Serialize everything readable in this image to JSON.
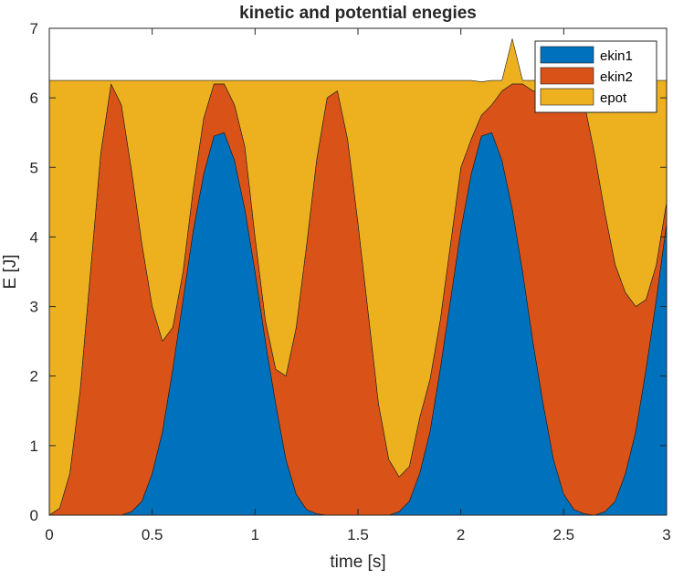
{
  "chart_data": {
    "type": "area",
    "stacked": true,
    "title": "kinetic and potential enegies",
    "xlabel": "time [s]",
    "ylabel": "E [J]",
    "xlim": [
      0,
      3
    ],
    "ylim": [
      0,
      7
    ],
    "xticks": [
      0,
      0.5,
      1,
      1.5,
      2,
      2.5,
      3
    ],
    "yticks": [
      0,
      1,
      2,
      3,
      4,
      5,
      6,
      7
    ],
    "xtick_labels": [
      "0",
      "0.5",
      "1",
      "1.5",
      "2",
      "2.5",
      "3"
    ],
    "ytick_labels": [
      "0",
      "1",
      "2",
      "3",
      "4",
      "5",
      "6",
      "7"
    ],
    "grid": false,
    "legend_position": "top-right",
    "total_energy": 6.25,
    "x": [
      0,
      0.05,
      0.1,
      0.15,
      0.2,
      0.25,
      0.3,
      0.35,
      0.4,
      0.45,
      0.5,
      0.55,
      0.6,
      0.65,
      0.7,
      0.75,
      0.8,
      0.85,
      0.9,
      0.95,
      1.0,
      1.05,
      1.1,
      1.15,
      1.2,
      1.25,
      1.3,
      1.35,
      1.4,
      1.45,
      1.5,
      1.55,
      1.6,
      1.65,
      1.7,
      1.75,
      1.8,
      1.85,
      1.9,
      1.95,
      2.0,
      2.05,
      2.1,
      2.15,
      2.2,
      2.25,
      2.3,
      2.35,
      2.4,
      2.45,
      2.5,
      2.55,
      2.6,
      2.65,
      2.7,
      2.75,
      2.8,
      2.85,
      2.9,
      2.95,
      3.0
    ],
    "series": [
      {
        "name": "ekin1",
        "color": "#0072BD",
        "values": [
          0,
          0,
          0,
          0,
          0,
          0,
          0,
          0,
          0.05,
          0.2,
          0.6,
          1.2,
          2.1,
          3.1,
          4.1,
          4.9,
          5.45,
          5.5,
          5.1,
          4.4,
          3.5,
          2.5,
          1.6,
          0.8,
          0.3,
          0.08,
          0.02,
          0,
          0,
          0,
          0,
          0,
          0,
          0,
          0.05,
          0.2,
          0.6,
          1.2,
          2.1,
          3.1,
          4.1,
          4.9,
          5.45,
          5.5,
          5.1,
          4.4,
          3.5,
          2.5,
          1.6,
          0.8,
          0.3,
          0.08,
          0.02,
          0,
          0.05,
          0.2,
          0.6,
          1.2,
          2.1,
          3.1,
          4.2
        ]
      },
      {
        "name": "ekin2",
        "color": "#D95319",
        "values": [
          0,
          0.1,
          0.6,
          1.8,
          3.5,
          5.2,
          6.2,
          5.9,
          4.9,
          3.7,
          2.4,
          1.3,
          0.6,
          0.4,
          0.6,
          0.8,
          0.75,
          0.7,
          0.8,
          0.9,
          0.5,
          0.3,
          0.5,
          1.2,
          2.4,
          3.8,
          5.1,
          6.0,
          6.1,
          5.4,
          4.2,
          2.9,
          1.6,
          0.8,
          0.5,
          0.5,
          0.8,
          0.75,
          0.7,
          0.8,
          0.9,
          0.5,
          0.3,
          0.4,
          1.0,
          1.8,
          2.7,
          3.6,
          4.5,
          5.3,
          5.9,
          6.1,
          5.9,
          5.2,
          4.3,
          3.4,
          2.6,
          1.8,
          1.0,
          0.5,
          0.3
        ]
      },
      {
        "name": "epot",
        "color": "#EDB120",
        "values": [
          6.25,
          6.15,
          5.65,
          4.45,
          2.75,
          1.05,
          0.05,
          0.35,
          1.3,
          2.35,
          3.25,
          3.75,
          3.55,
          2.75,
          1.55,
          0.55,
          0.05,
          0.05,
          0.35,
          0.95,
          2.25,
          3.45,
          4.15,
          4.25,
          3.55,
          2.37,
          1.13,
          0.25,
          0.15,
          0.85,
          2.05,
          3.35,
          4.65,
          5.45,
          5.7,
          5.55,
          4.85,
          4.3,
          3.45,
          2.35,
          1.25,
          0.85,
          0.48,
          0.35,
          0.15,
          0.65,
          0.05,
          0.15,
          0.15,
          0.15,
          0.05,
          0.07,
          0.33,
          1.05,
          1.9,
          2.65,
          3.05,
          3.25,
          3.15,
          2.65,
          1.75
        ]
      }
    ]
  }
}
